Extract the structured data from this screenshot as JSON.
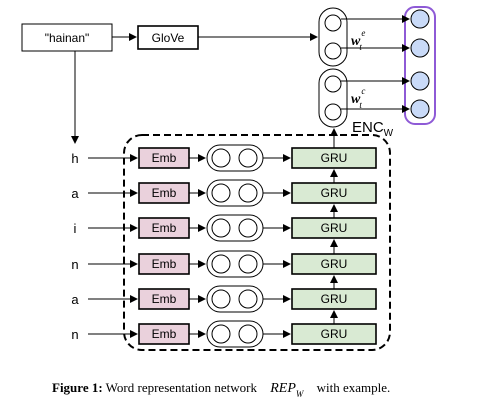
{
  "input_word": "\"hainan\"",
  "glove_label": "GloVe",
  "chars": [
    "h",
    "a",
    "i",
    "n",
    "a",
    "n"
  ],
  "emb_label": "Emb",
  "gru_label": "GRU",
  "enc_label": "ENC",
  "enc_sub": "W",
  "w_symbol": "w",
  "w_e_sup": "e",
  "w_e_sub": "t",
  "w_c_sup": "c",
  "w_c_sub": "t",
  "caption": {
    "bold": "Figure 1:",
    "text": " Word representation network ",
    "math": "REP",
    "math_sub": "W",
    "tail": " with example."
  },
  "colors": {
    "emb_fill": "#ead1dc",
    "gru_fill": "#d9ead3",
    "output_fill": "#c9daf8",
    "output_border": "#8e5ad6"
  }
}
